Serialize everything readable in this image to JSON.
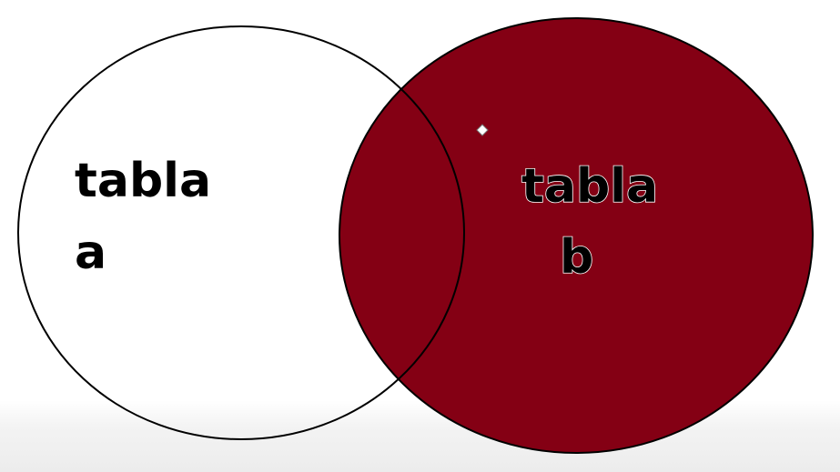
{
  "diagram": {
    "set_a": {
      "label_line1": "tabla",
      "label_line2": "a",
      "fill": "#ffffff",
      "stroke": "#000000"
    },
    "set_b": {
      "label_line1": "tabla",
      "label_line2": "b",
      "fill": "#840014",
      "stroke": "#000000",
      "highlighted": true
    }
  }
}
